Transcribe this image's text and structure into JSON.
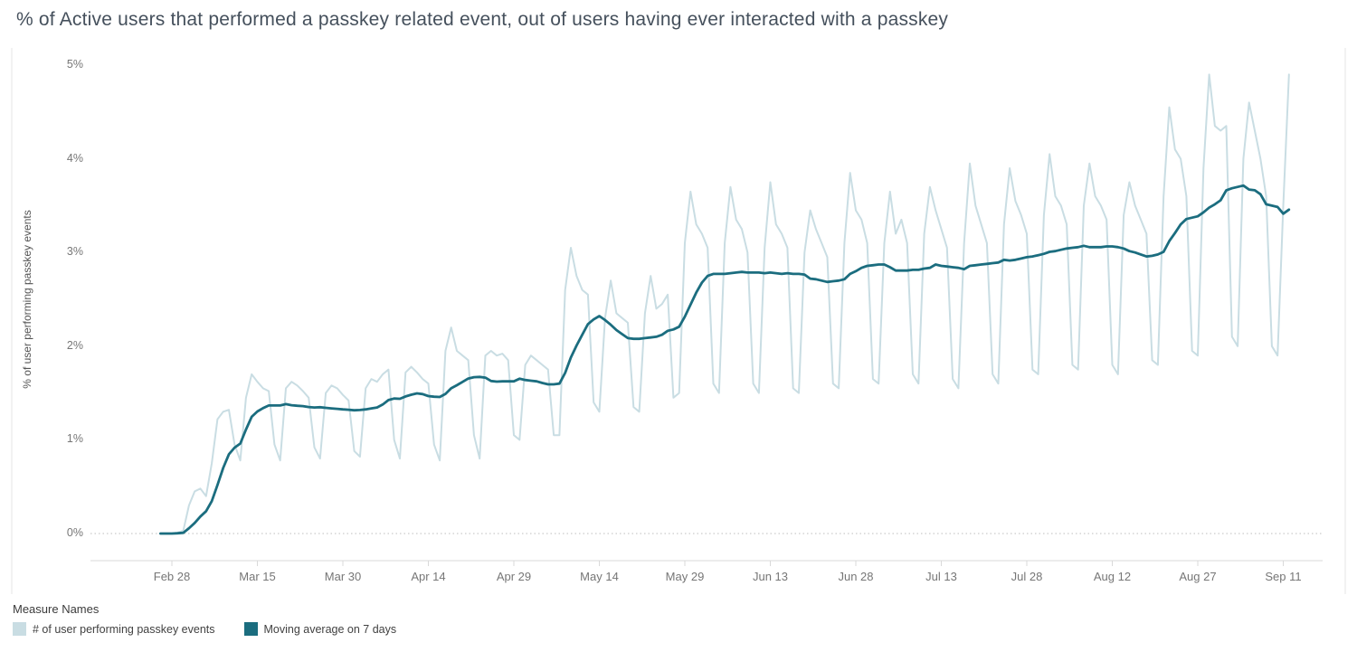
{
  "title": "% of Active users that performed a passkey related event, out of users having ever interacted with a passkey",
  "chart_data": {
    "type": "line",
    "title": "% of Active users that performed a passkey related event, out of users having ever interacted with a passkey",
    "xlabel": "",
    "ylabel": "% of user performing passkey events",
    "ylim": [
      0,
      5
    ],
    "y_tick_labels": [
      "0%",
      "1%",
      "2%",
      "3%",
      "4%",
      "5%"
    ],
    "x_tick_labels": [
      "Feb 28",
      "Mar 15",
      "Mar 30",
      "Apr 14",
      "Apr 29",
      "May 14",
      "May 29",
      "Jun 13",
      "Jun 28",
      "Jul 13",
      "Jul 28",
      "Aug 12",
      "Aug 27",
      "Sep 11"
    ],
    "x_tick_day_indices": [
      2,
      17,
      32,
      47,
      62,
      77,
      92,
      107,
      122,
      137,
      152,
      167,
      182,
      197
    ],
    "x_start_date": "Feb 26",
    "x_unit": "day",
    "grid": "dotted zero line only",
    "legend_position": "bottom-left",
    "series": [
      {
        "name": "# of user performing passkey events",
        "color": "#c9dde3",
        "values": [
          0.0,
          0.0,
          0.0,
          0.01,
          0.03,
          0.3,
          0.45,
          0.48,
          0.4,
          0.75,
          1.22,
          1.3,
          1.32,
          0.95,
          0.78,
          1.45,
          1.7,
          1.62,
          1.55,
          1.52,
          0.95,
          0.78,
          1.55,
          1.62,
          1.58,
          1.52,
          1.45,
          0.92,
          0.8,
          1.5,
          1.58,
          1.55,
          1.48,
          1.42,
          0.88,
          0.82,
          1.55,
          1.65,
          1.62,
          1.7,
          1.75,
          1.0,
          0.8,
          1.72,
          1.78,
          1.72,
          1.65,
          1.6,
          0.95,
          0.78,
          1.95,
          2.2,
          1.95,
          1.9,
          1.85,
          1.05,
          0.8,
          1.9,
          1.95,
          1.9,
          1.92,
          1.85,
          1.05,
          1.0,
          1.8,
          1.9,
          1.85,
          1.8,
          1.75,
          1.05,
          1.05,
          2.6,
          3.05,
          2.75,
          2.6,
          2.55,
          1.4,
          1.3,
          2.3,
          2.7,
          2.35,
          2.3,
          2.25,
          1.35,
          1.3,
          2.35,
          2.75,
          2.4,
          2.45,
          2.55,
          1.45,
          1.5,
          3.1,
          3.65,
          3.3,
          3.2,
          3.05,
          1.6,
          1.5,
          3.1,
          3.7,
          3.35,
          3.25,
          3.0,
          1.6,
          1.5,
          3.05,
          3.75,
          3.3,
          3.2,
          3.05,
          1.55,
          1.5,
          3.0,
          3.45,
          3.25,
          3.1,
          2.95,
          1.6,
          1.55,
          3.1,
          3.85,
          3.45,
          3.35,
          3.1,
          1.65,
          1.6,
          3.1,
          3.65,
          3.2,
          3.35,
          3.1,
          1.7,
          1.6,
          3.2,
          3.7,
          3.45,
          3.25,
          3.05,
          1.65,
          1.55,
          3.1,
          3.95,
          3.5,
          3.3,
          3.1,
          1.7,
          1.6,
          3.3,
          3.9,
          3.55,
          3.4,
          3.2,
          1.75,
          1.7,
          3.4,
          4.05,
          3.6,
          3.5,
          3.3,
          1.8,
          1.75,
          3.5,
          3.95,
          3.6,
          3.5,
          3.35,
          1.8,
          1.7,
          3.4,
          3.75,
          3.5,
          3.35,
          3.2,
          1.85,
          1.8,
          3.6,
          4.55,
          4.1,
          4.0,
          3.6,
          1.95,
          1.9,
          3.9,
          4.9,
          4.35,
          4.3,
          4.35,
          2.1,
          2.0,
          4.0,
          4.6,
          4.3,
          4.0,
          3.6,
          2.0,
          1.9,
          3.5,
          4.9
        ]
      },
      {
        "name": "Moving average on 7 days",
        "color": "#1b6d7f",
        "window": 7
      }
    ]
  },
  "legend": {
    "title": "Measure Names",
    "items": [
      {
        "label": "# of user performing passkey events",
        "color": "#c9dde3"
      },
      {
        "label": "Moving average on 7 days",
        "color": "#1b6d7f"
      }
    ]
  }
}
